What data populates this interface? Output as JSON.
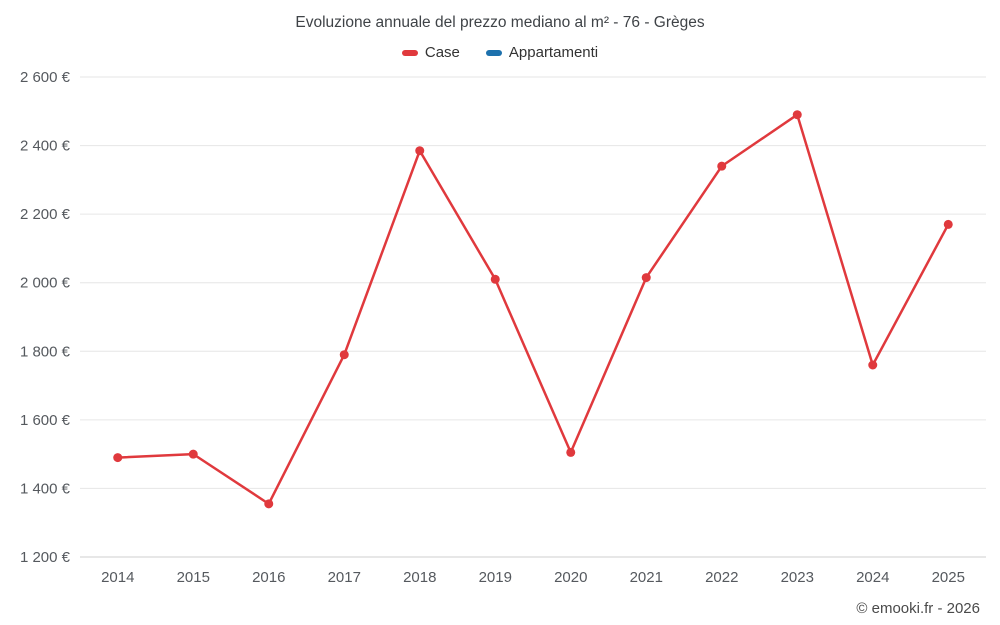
{
  "page": {
    "footer": "© emooki.fr - 2026"
  },
  "chart_data": {
    "type": "line",
    "title": "Evoluzione annuale del prezzo mediano al m² - 76 - Grèges",
    "categories": [
      "2014",
      "2015",
      "2016",
      "2017",
      "2018",
      "2019",
      "2020",
      "2021",
      "2022",
      "2023",
      "2024",
      "2025"
    ],
    "series": [
      {
        "name": "Case",
        "color": "#e0393d",
        "values": [
          1490,
          1500,
          1355,
          1790,
          2385,
          2010,
          1505,
          2015,
          2340,
          2490,
          1760,
          2170
        ]
      },
      {
        "name": "Appartamenti",
        "color": "#1d71ad",
        "values": []
      }
    ],
    "xlabel": "",
    "ylabel": "",
    "ylim": [
      1200,
      2600
    ],
    "ytick_interval": 200,
    "yticks": [
      {
        "value": 1200,
        "label": "1 200 €"
      },
      {
        "value": 1400,
        "label": "1 400 €"
      },
      {
        "value": 1600,
        "label": "1 600 €"
      },
      {
        "value": 1800,
        "label": "1 800 €"
      },
      {
        "value": 2000,
        "label": "2 000 €"
      },
      {
        "value": 2200,
        "label": "2 200 €"
      },
      {
        "value": 2400,
        "label": "2 400 €"
      },
      {
        "value": 2600,
        "label": "2 600 €"
      }
    ],
    "grid": "horizontal",
    "legend_position": "top"
  }
}
